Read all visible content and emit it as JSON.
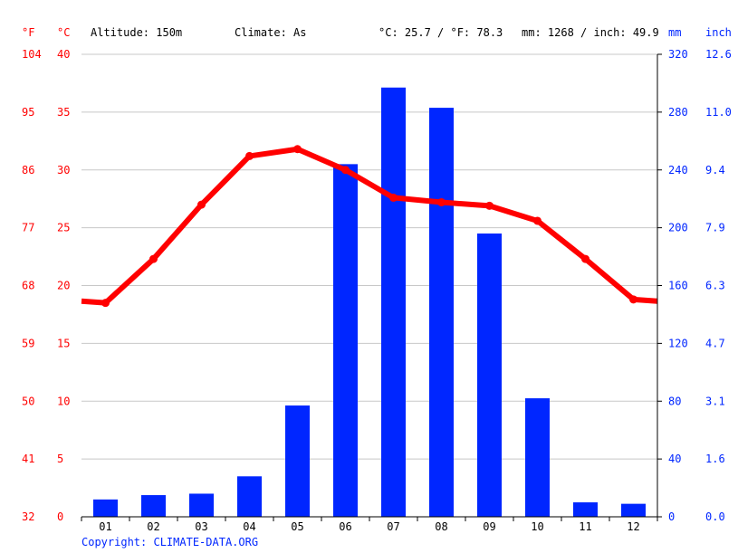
{
  "header": {
    "unit_f": "°F",
    "unit_c": "°C",
    "altitude": "Altitude: 150m",
    "climate": "Climate: As",
    "avg_temp": "°C: 25.7 / °F: 78.3",
    "avg_precip": "mm: 1268 / inch: 49.9",
    "unit_mm": "mm",
    "unit_inch": "inch"
  },
  "copyright": "Copyright: CLIMATE-DATA.ORG",
  "colors": {
    "temperature": "#ff0000",
    "precipitation": "#0026ff",
    "grid": "#c8c8c8"
  },
  "chart_data": {
    "type": "bar",
    "categories": [
      "01",
      "02",
      "03",
      "04",
      "05",
      "06",
      "07",
      "08",
      "09",
      "10",
      "11",
      "12"
    ],
    "series": [
      {
        "type": "bar",
        "axis": "right",
        "values": [
          12,
          15,
          16,
          28,
          77,
          244,
          297,
          283,
          196,
          82,
          10,
          9
        ]
      },
      {
        "type": "line",
        "axis": "left",
        "values": [
          18.5,
          22.3,
          27.0,
          31.2,
          31.8,
          30.0,
          27.6,
          27.2,
          26.9,
          25.6,
          22.3,
          18.8
        ]
      }
    ],
    "y_left_c": {
      "ticks": [
        "0",
        "5",
        "10",
        "15",
        "20",
        "25",
        "30",
        "35",
        "40"
      ],
      "range": [
        0,
        40
      ]
    },
    "y_left_f": {
      "ticks": [
        "32",
        "41",
        "50",
        "59",
        "68",
        "77",
        "86",
        "95",
        "104"
      ]
    },
    "y_right_mm": {
      "ticks": [
        "0",
        "40",
        "80",
        "120",
        "160",
        "200",
        "240",
        "280",
        "320"
      ],
      "range": [
        0,
        320
      ]
    },
    "y_right_inch": {
      "ticks": [
        "0.0",
        "1.6",
        "3.1",
        "4.7",
        "6.3",
        "7.9",
        "9.4",
        "11.0",
        "12.6"
      ]
    },
    "grid": true
  }
}
